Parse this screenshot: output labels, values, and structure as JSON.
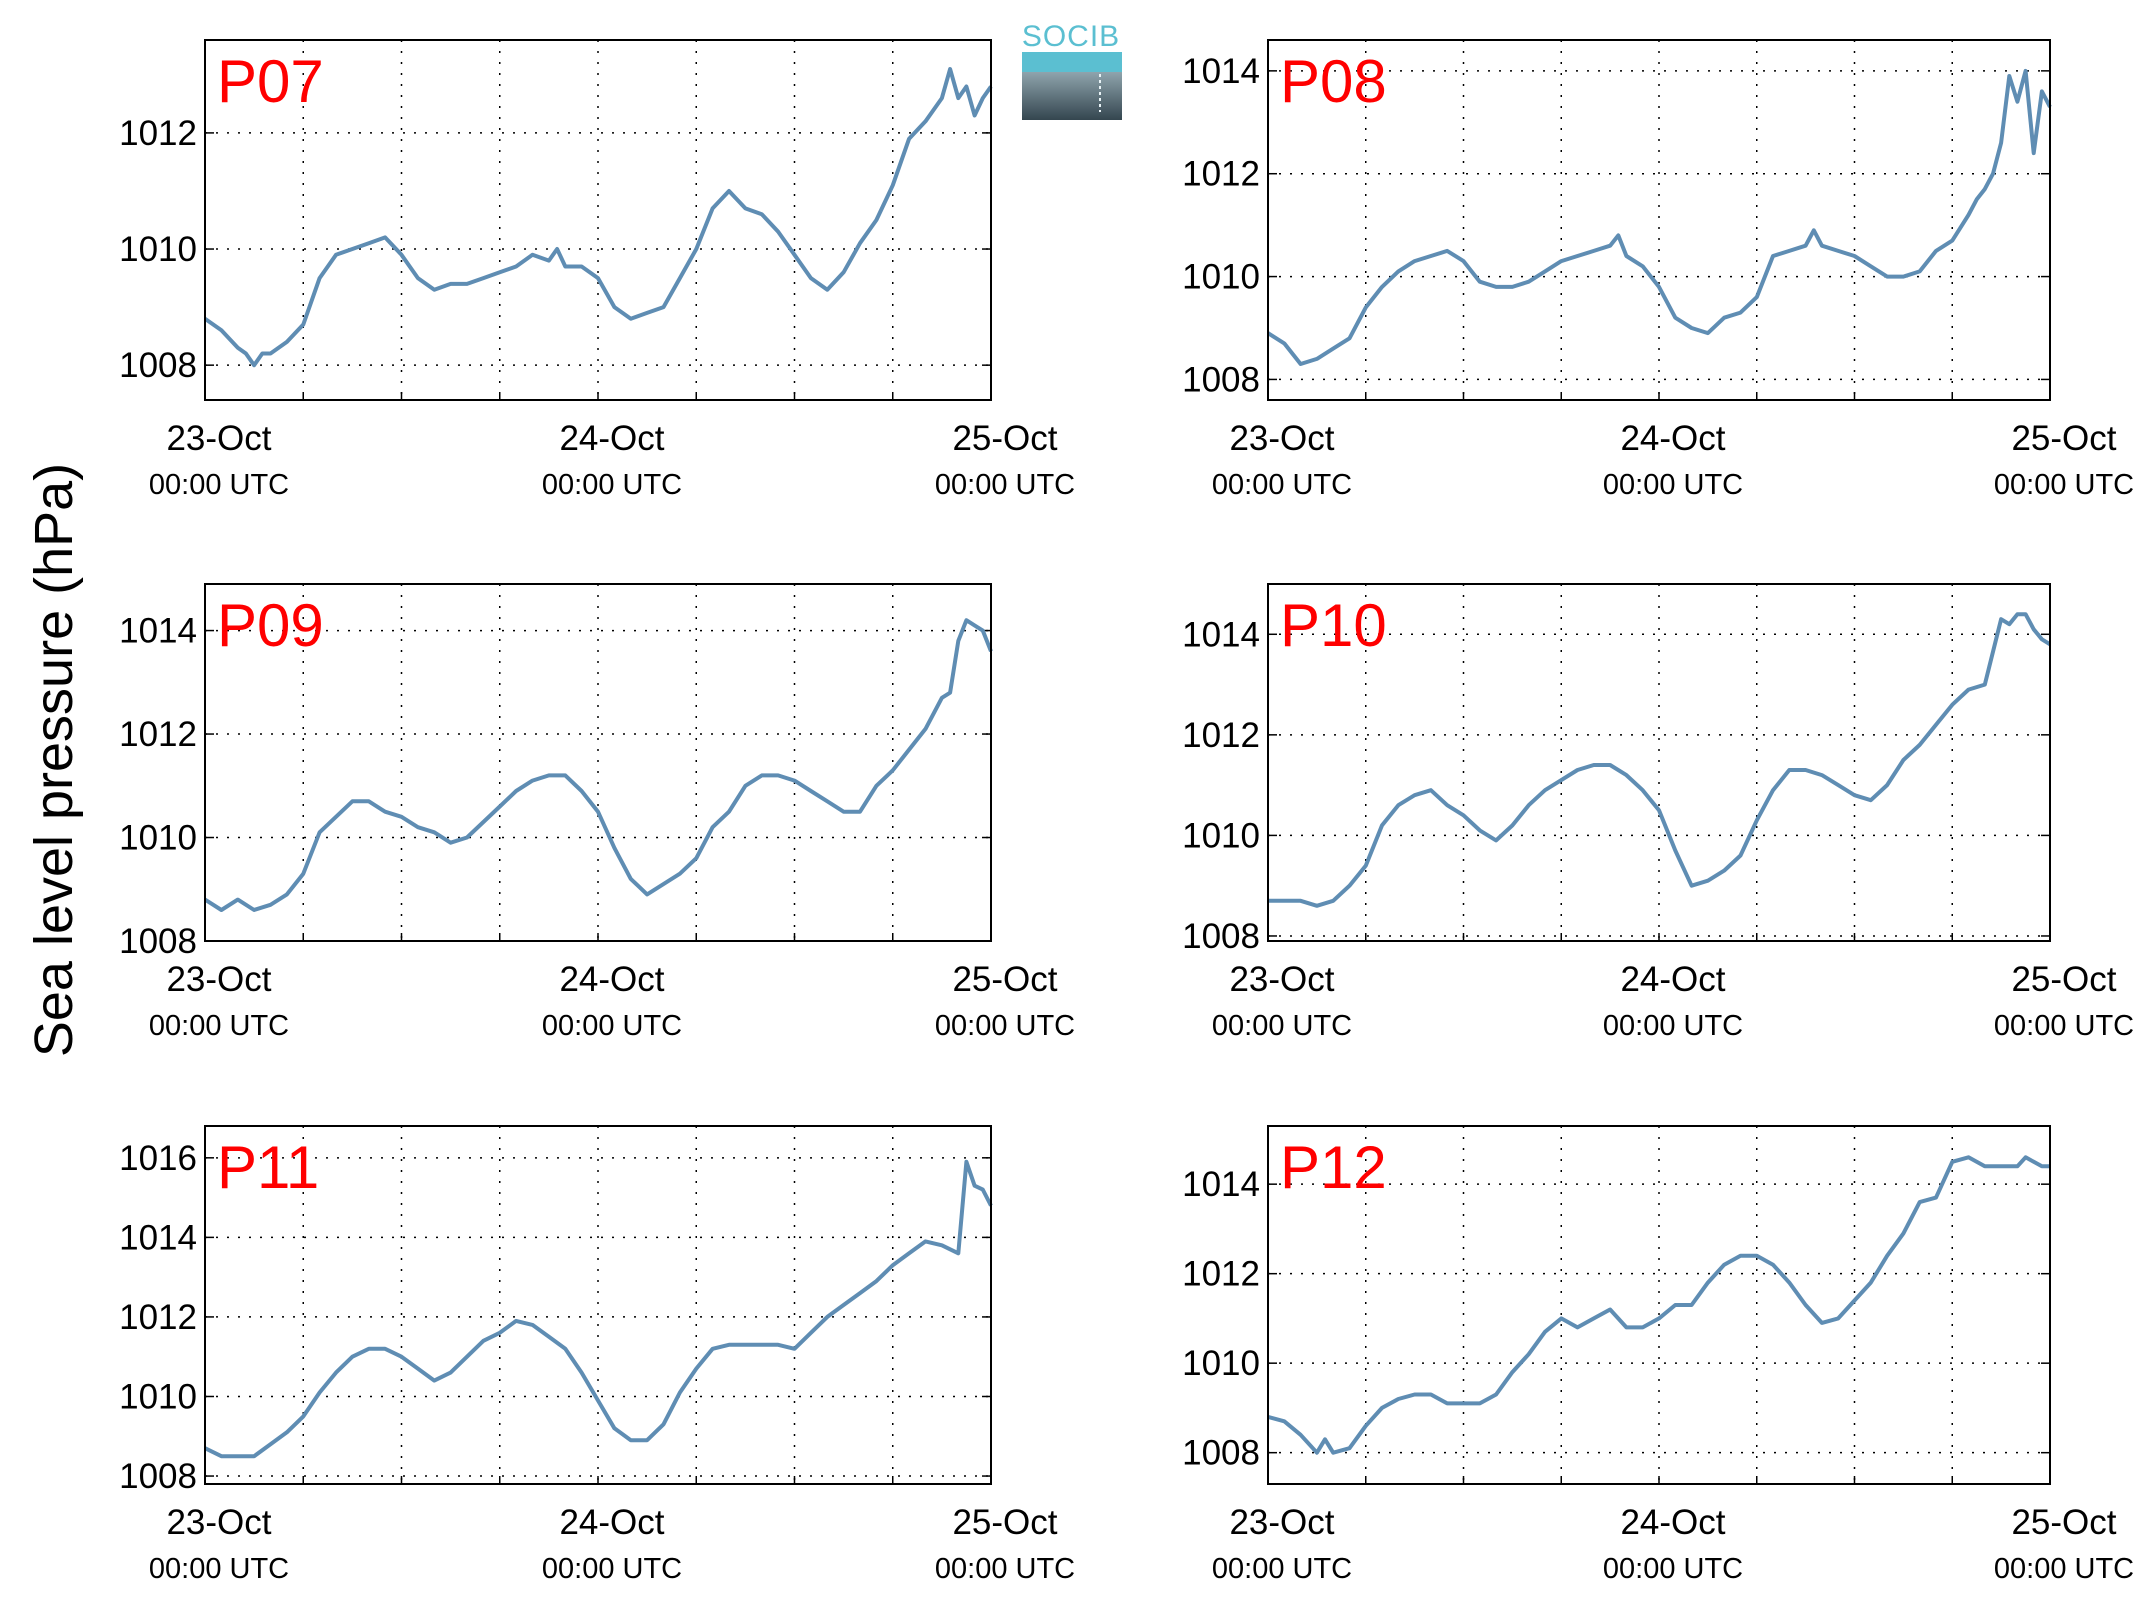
{
  "figure": {
    "ylabel": "Sea level pressure (hPa)",
    "logo_text": "SOCIB"
  },
  "colors": {
    "line": "#5f8db3",
    "label": "#ff0000",
    "grid": "#000000"
  },
  "chart_data": [
    {
      "type": "line",
      "title": "P07",
      "xlim": [
        0,
        48
      ],
      "ylim": [
        1007.4,
        1013.6
      ],
      "yticks": [
        1008,
        1010,
        1012
      ],
      "xticks": [
        {
          "x": 0,
          "label": "23-Oct",
          "sub": "00:00 UTC"
        },
        {
          "x": 24,
          "label": "24-Oct",
          "sub": "00:00 UTC"
        },
        {
          "x": 48,
          "label": "25-Oct",
          "sub": "00:00 UTC"
        }
      ],
      "x": [
        0,
        1,
        2,
        2.5,
        3,
        3.5,
        4,
        5,
        6,
        7,
        8,
        9,
        10,
        11,
        12,
        13,
        14,
        15,
        16,
        17,
        18,
        19,
        20,
        21,
        21.5,
        22,
        23,
        24,
        25,
        26,
        27,
        28,
        29,
        30,
        31,
        32,
        33,
        34,
        35,
        36,
        37,
        38,
        39,
        40,
        41,
        42,
        43,
        44,
        45,
        45.5,
        46,
        46.5,
        47,
        47.5,
        48
      ],
      "y": [
        1008.8,
        1008.6,
        1008.3,
        1008.2,
        1008.0,
        1008.2,
        1008.2,
        1008.4,
        1008.7,
        1009.5,
        1009.9,
        1010.0,
        1010.1,
        1010.2,
        1009.9,
        1009.5,
        1009.3,
        1009.4,
        1009.4,
        1009.5,
        1009.6,
        1009.7,
        1009.9,
        1009.8,
        1010.0,
        1009.7,
        1009.7,
        1009.5,
        1009.0,
        1008.8,
        1008.9,
        1009.0,
        1009.5,
        1010.0,
        1010.7,
        1011.0,
        1010.7,
        1010.6,
        1010.3,
        1009.9,
        1009.5,
        1009.3,
        1009.6,
        1010.1,
        1010.5,
        1011.1,
        1011.9,
        1012.2,
        1012.6,
        1013.1,
        1012.6,
        1012.8,
        1012.3,
        1012.6,
        1012.8
      ]
    },
    {
      "type": "line",
      "title": "P08",
      "xlim": [
        0,
        48
      ],
      "ylim": [
        1007.6,
        1014.6
      ],
      "yticks": [
        1008,
        1010,
        1012,
        1014
      ],
      "xticks": [
        {
          "x": 0,
          "label": "23-Oct",
          "sub": "00:00 UTC"
        },
        {
          "x": 24,
          "label": "24-Oct",
          "sub": "00:00 UTC"
        },
        {
          "x": 48,
          "label": "25-Oct",
          "sub": "00:00 UTC"
        }
      ],
      "x": [
        0,
        1,
        2,
        3,
        4,
        5,
        6,
        7,
        8,
        9,
        10,
        11,
        12,
        13,
        14,
        15,
        16,
        17,
        18,
        19,
        20,
        21,
        21.5,
        22,
        23,
        24,
        25,
        26,
        27,
        28,
        29,
        30,
        31,
        32,
        33,
        33.5,
        34,
        35,
        36,
        37,
        38,
        39,
        40,
        41,
        42,
        43,
        43.5,
        44,
        44.5,
        45,
        45.5,
        46,
        46.5,
        47,
        47.5,
        48
      ],
      "y": [
        1008.9,
        1008.7,
        1008.3,
        1008.4,
        1008.6,
        1008.8,
        1009.4,
        1009.8,
        1010.1,
        1010.3,
        1010.4,
        1010.5,
        1010.3,
        1009.9,
        1009.8,
        1009.8,
        1009.9,
        1010.1,
        1010.3,
        1010.4,
        1010.5,
        1010.6,
        1010.8,
        1010.4,
        1010.2,
        1009.8,
        1009.2,
        1009.0,
        1008.9,
        1009.2,
        1009.3,
        1009.6,
        1010.4,
        1010.5,
        1010.6,
        1010.9,
        1010.6,
        1010.5,
        1010.4,
        1010.2,
        1010.0,
        1010.0,
        1010.1,
        1010.5,
        1010.7,
        1011.2,
        1011.5,
        1011.7,
        1012.0,
        1012.6,
        1013.9,
        1013.4,
        1014.0,
        1012.4,
        1013.6,
        1013.3
      ]
    },
    {
      "type": "line",
      "title": "P09",
      "xlim": [
        0,
        48
      ],
      "ylim": [
        1008,
        1014.9
      ],
      "yticks": [
        1008,
        1010,
        1012,
        1014
      ],
      "xticks": [
        {
          "x": 0,
          "label": "23-Oct",
          "sub": "00:00 UTC"
        },
        {
          "x": 24,
          "label": "24-Oct",
          "sub": "00:00 UTC"
        },
        {
          "x": 48,
          "label": "25-Oct",
          "sub": "00:00 UTC"
        }
      ],
      "x": [
        0,
        1,
        2,
        3,
        4,
        5,
        6,
        7,
        8,
        9,
        10,
        11,
        12,
        13,
        14,
        15,
        16,
        17,
        18,
        19,
        20,
        21,
        22,
        23,
        24,
        25,
        26,
        27,
        28,
        29,
        30,
        31,
        32,
        33,
        34,
        35,
        36,
        37,
        38,
        39,
        40,
        41,
        42,
        43,
        44,
        45,
        45.5,
        46,
        46.5,
        47,
        47.5,
        48
      ],
      "y": [
        1008.8,
        1008.6,
        1008.8,
        1008.6,
        1008.7,
        1008.9,
        1009.3,
        1010.1,
        1010.4,
        1010.7,
        1010.7,
        1010.5,
        1010.4,
        1010.2,
        1010.1,
        1009.9,
        1010.0,
        1010.3,
        1010.6,
        1010.9,
        1011.1,
        1011.2,
        1011.2,
        1010.9,
        1010.5,
        1009.8,
        1009.2,
        1008.9,
        1009.1,
        1009.3,
        1009.6,
        1010.2,
        1010.5,
        1011.0,
        1011.2,
        1011.2,
        1011.1,
        1010.9,
        1010.7,
        1010.5,
        1010.5,
        1011.0,
        1011.3,
        1011.7,
        1012.1,
        1012.7,
        1012.8,
        1013.8,
        1014.2,
        1014.1,
        1014.0,
        1013.6
      ]
    },
    {
      "type": "line",
      "title": "P10",
      "xlim": [
        0,
        48
      ],
      "ylim": [
        1007.9,
        1015
      ],
      "yticks": [
        1008,
        1010,
        1012,
        1014
      ],
      "xticks": [
        {
          "x": 0,
          "label": "23-Oct",
          "sub": "00:00 UTC"
        },
        {
          "x": 24,
          "label": "24-Oct",
          "sub": "00:00 UTC"
        },
        {
          "x": 48,
          "label": "25-Oct",
          "sub": "00:00 UTC"
        }
      ],
      "x": [
        0,
        1,
        2,
        3,
        4,
        5,
        6,
        7,
        8,
        9,
        10,
        11,
        12,
        13,
        14,
        15,
        16,
        17,
        18,
        19,
        20,
        21,
        22,
        23,
        24,
        25,
        26,
        27,
        28,
        29,
        30,
        31,
        32,
        33,
        34,
        35,
        36,
        37,
        38,
        39,
        40,
        41,
        42,
        43,
        44,
        45,
        45.5,
        46,
        46.5,
        47,
        47.5,
        48
      ],
      "y": [
        1008.7,
        1008.7,
        1008.7,
        1008.6,
        1008.7,
        1009.0,
        1009.4,
        1010.2,
        1010.6,
        1010.8,
        1010.9,
        1010.6,
        1010.4,
        1010.1,
        1009.9,
        1010.2,
        1010.6,
        1010.9,
        1011.1,
        1011.3,
        1011.4,
        1011.4,
        1011.2,
        1010.9,
        1010.5,
        1009.7,
        1009.0,
        1009.1,
        1009.3,
        1009.6,
        1010.3,
        1010.9,
        1011.3,
        1011.3,
        1011.2,
        1011.0,
        1010.8,
        1010.7,
        1011.0,
        1011.5,
        1011.8,
        1012.2,
        1012.6,
        1012.9,
        1013.0,
        1014.3,
        1014.2,
        1014.4,
        1014.4,
        1014.1,
        1013.9,
        1013.8
      ]
    },
    {
      "type": "line",
      "title": "P11",
      "xlim": [
        0,
        48
      ],
      "ylim": [
        1007.8,
        1016.8
      ],
      "yticks": [
        1008,
        1010,
        1012,
        1014,
        1016
      ],
      "xticks": [
        {
          "x": 0,
          "label": "23-Oct",
          "sub": "00:00 UTC"
        },
        {
          "x": 24,
          "label": "24-Oct",
          "sub": "00:00 UTC"
        },
        {
          "x": 48,
          "label": "25-Oct",
          "sub": "00:00 UTC"
        }
      ],
      "x": [
        0,
        1,
        2,
        3,
        4,
        5,
        6,
        7,
        8,
        9,
        10,
        11,
        12,
        13,
        14,
        15,
        16,
        17,
        18,
        19,
        20,
        21,
        22,
        23,
        24,
        25,
        26,
        27,
        28,
        29,
        30,
        31,
        32,
        33,
        34,
        35,
        36,
        37,
        38,
        39,
        40,
        41,
        42,
        43,
        44,
        45,
        46,
        46.5,
        47,
        47.5,
        48
      ],
      "y": [
        1008.7,
        1008.5,
        1008.5,
        1008.5,
        1008.8,
        1009.1,
        1009.5,
        1010.1,
        1010.6,
        1011.0,
        1011.2,
        1011.2,
        1011.0,
        1010.7,
        1010.4,
        1010.6,
        1011.0,
        1011.4,
        1011.6,
        1011.9,
        1011.8,
        1011.5,
        1011.2,
        1010.6,
        1009.9,
        1009.2,
        1008.9,
        1008.9,
        1009.3,
        1010.1,
        1010.7,
        1011.2,
        1011.3,
        1011.3,
        1011.3,
        1011.3,
        1011.2,
        1011.6,
        1012.0,
        1012.3,
        1012.6,
        1012.9,
        1013.3,
        1013.6,
        1013.9,
        1013.8,
        1013.6,
        1015.9,
        1015.3,
        1015.2,
        1014.8
      ]
    },
    {
      "type": "line",
      "title": "P12",
      "xlim": [
        0,
        48
      ],
      "ylim": [
        1007.3,
        1015.3
      ],
      "yticks": [
        1008,
        1010,
        1012,
        1014
      ],
      "xticks": [
        {
          "x": 0,
          "label": "23-Oct",
          "sub": "00:00 UTC"
        },
        {
          "x": 24,
          "label": "24-Oct",
          "sub": "00:00 UTC"
        },
        {
          "x": 48,
          "label": "25-Oct",
          "sub": "00:00 UTC"
        }
      ],
      "x": [
        0,
        1,
        2,
        3,
        3.5,
        4,
        5,
        6,
        7,
        8,
        9,
        10,
        11,
        12,
        13,
        14,
        15,
        16,
        17,
        18,
        19,
        20,
        21,
        22,
        23,
        24,
        25,
        26,
        27,
        28,
        29,
        30,
        31,
        32,
        33,
        34,
        35,
        36,
        37,
        38,
        39,
        40,
        41,
        42,
        43,
        44,
        45,
        46,
        46.5,
        47,
        47.5,
        48
      ],
      "y": [
        1008.8,
        1008.7,
        1008.4,
        1008.0,
        1008.3,
        1008.0,
        1008.1,
        1008.6,
        1009.0,
        1009.2,
        1009.3,
        1009.3,
        1009.1,
        1009.1,
        1009.1,
        1009.3,
        1009.8,
        1010.2,
        1010.7,
        1011.0,
        1010.8,
        1011.0,
        1011.2,
        1010.8,
        1010.8,
        1011.0,
        1011.3,
        1011.3,
        1011.8,
        1012.2,
        1012.4,
        1012.4,
        1012.2,
        1011.8,
        1011.3,
        1010.9,
        1011.0,
        1011.4,
        1011.8,
        1012.4,
        1012.9,
        1013.6,
        1013.7,
        1014.5,
        1014.6,
        1014.4,
        1014.4,
        1014.4,
        1014.6,
        1014.5,
        1014.4,
        1014.4
      ]
    }
  ]
}
